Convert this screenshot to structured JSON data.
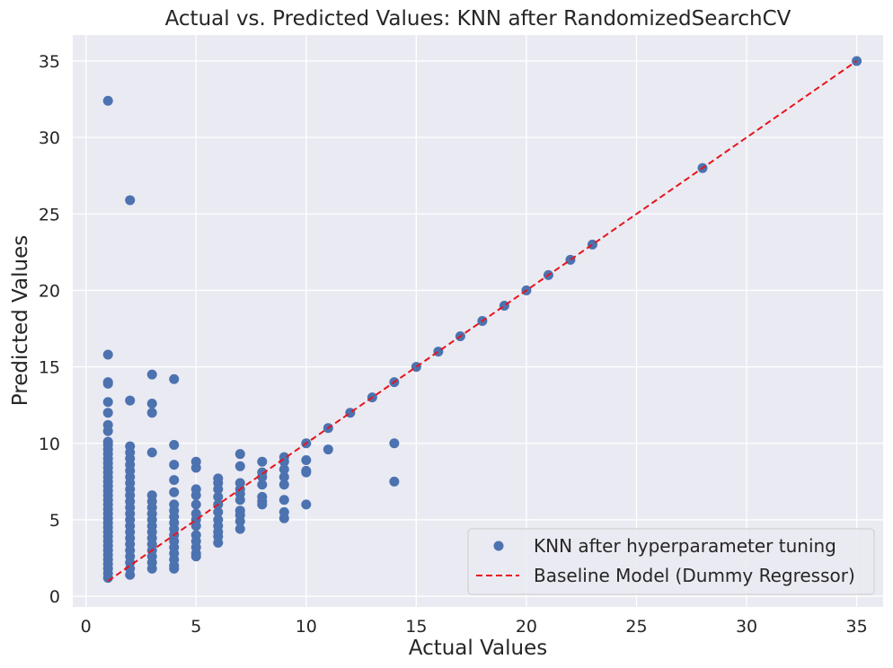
{
  "chart_data": {
    "type": "scatter",
    "title": "Actual vs. Predicted Values: KNN after RandomizedSearchCV",
    "xlabel": "Actual Values",
    "ylabel": "Predicted Values",
    "xlim": [
      -0.6,
      36.2
    ],
    "ylim": [
      -0.7,
      36.7
    ],
    "xticks": [
      0,
      5,
      10,
      15,
      20,
      25,
      30,
      35
    ],
    "yticks": [
      0,
      5,
      10,
      15,
      20,
      25,
      30,
      35
    ],
    "grid": true,
    "legend_position": "lower-right",
    "colors": {
      "background": "#eaeaf2",
      "grid": "#ffffff",
      "scatter": "#4c72b0",
      "baseline": "#e8141b"
    },
    "series": [
      {
        "name": "KNN after hyperparameter tuning",
        "kind": "scatter",
        "points": [
          [
            1,
            32.4
          ],
          [
            1,
            15.8
          ],
          [
            1,
            14.0
          ],
          [
            1,
            13.9
          ],
          [
            1,
            12.7
          ],
          [
            1,
            12.0
          ],
          [
            1,
            11.2
          ],
          [
            1,
            10.8
          ],
          [
            1,
            10.1
          ],
          [
            1,
            9.9
          ],
          [
            1,
            9.6
          ],
          [
            1,
            9.3
          ],
          [
            1,
            9.0
          ],
          [
            1,
            8.7
          ],
          [
            1,
            8.4
          ],
          [
            1,
            8.1
          ],
          [
            1,
            7.8
          ],
          [
            1,
            7.5
          ],
          [
            1,
            7.2
          ],
          [
            1,
            6.9
          ],
          [
            1,
            6.6
          ],
          [
            1,
            6.3
          ],
          [
            1,
            6.0
          ],
          [
            1,
            5.7
          ],
          [
            1,
            5.4
          ],
          [
            1,
            5.1
          ],
          [
            1,
            4.8
          ],
          [
            1,
            4.5
          ],
          [
            1,
            4.2
          ],
          [
            1,
            3.9
          ],
          [
            1,
            3.6
          ],
          [
            1,
            3.3
          ],
          [
            1,
            3.0
          ],
          [
            1,
            2.7
          ],
          [
            1,
            2.4
          ],
          [
            1,
            2.1
          ],
          [
            1,
            1.8
          ],
          [
            1,
            1.5
          ],
          [
            1,
            1.2
          ],
          [
            2,
            25.9
          ],
          [
            2,
            12.8
          ],
          [
            2,
            9.8
          ],
          [
            2,
            9.4
          ],
          [
            2,
            9.0
          ],
          [
            2,
            8.6
          ],
          [
            2,
            8.2
          ],
          [
            2,
            7.8
          ],
          [
            2,
            7.4
          ],
          [
            2,
            7.0
          ],
          [
            2,
            6.6
          ],
          [
            2,
            6.2
          ],
          [
            2,
            5.8
          ],
          [
            2,
            5.4
          ],
          [
            2,
            5.0
          ],
          [
            2,
            4.6
          ],
          [
            2,
            4.2
          ],
          [
            2,
            3.8
          ],
          [
            2,
            3.4
          ],
          [
            2,
            3.0
          ],
          [
            2,
            2.6
          ],
          [
            2,
            2.2
          ],
          [
            2,
            1.8
          ],
          [
            2,
            1.4
          ],
          [
            3,
            14.5
          ],
          [
            3,
            12.6
          ],
          [
            3,
            12.0
          ],
          [
            3,
            9.4
          ],
          [
            3,
            6.6
          ],
          [
            3,
            6.2
          ],
          [
            3,
            5.8
          ],
          [
            3,
            5.4
          ],
          [
            3,
            5.0
          ],
          [
            3,
            4.6
          ],
          [
            3,
            4.2
          ],
          [
            3,
            3.8
          ],
          [
            3,
            3.4
          ],
          [
            3,
            3.0
          ],
          [
            3,
            2.6
          ],
          [
            3,
            2.2
          ],
          [
            3,
            1.8
          ],
          [
            4,
            14.2
          ],
          [
            4,
            9.9
          ],
          [
            4,
            8.6
          ],
          [
            4,
            7.6
          ],
          [
            4,
            6.8
          ],
          [
            4,
            6.0
          ],
          [
            4,
            5.6
          ],
          [
            4,
            5.2
          ],
          [
            4,
            4.8
          ],
          [
            4,
            4.4
          ],
          [
            4,
            4.0
          ],
          [
            4,
            3.6
          ],
          [
            4,
            3.2
          ],
          [
            4,
            2.8
          ],
          [
            4,
            2.4
          ],
          [
            4,
            2.0
          ],
          [
            4,
            1.8
          ],
          [
            5,
            8.8
          ],
          [
            5,
            8.4
          ],
          [
            5,
            7.0
          ],
          [
            5,
            6.6
          ],
          [
            5,
            6.0
          ],
          [
            5,
            5.4
          ],
          [
            5,
            5.0
          ],
          [
            5,
            4.6
          ],
          [
            5,
            4.0
          ],
          [
            5,
            3.6
          ],
          [
            5,
            3.2
          ],
          [
            5,
            2.8
          ],
          [
            5,
            2.6
          ],
          [
            6,
            7.7
          ],
          [
            6,
            7.4
          ],
          [
            6,
            7.0
          ],
          [
            6,
            6.5
          ],
          [
            6,
            6.0
          ],
          [
            6,
            5.5
          ],
          [
            6,
            5.0
          ],
          [
            6,
            4.6
          ],
          [
            6,
            4.2
          ],
          [
            6,
            3.9
          ],
          [
            6,
            3.5
          ],
          [
            7,
            9.3
          ],
          [
            7,
            8.5
          ],
          [
            7,
            7.4
          ],
          [
            7,
            7.0
          ],
          [
            7,
            6.7
          ],
          [
            7,
            6.3
          ],
          [
            7,
            5.6
          ],
          [
            7,
            5.3
          ],
          [
            7,
            4.9
          ],
          [
            7,
            4.4
          ],
          [
            8,
            8.8
          ],
          [
            8,
            8.1
          ],
          [
            8,
            7.8
          ],
          [
            8,
            7.3
          ],
          [
            8,
            6.5
          ],
          [
            8,
            6.2
          ],
          [
            8,
            6.0
          ],
          [
            9,
            9.1
          ],
          [
            9,
            8.8
          ],
          [
            9,
            8.3
          ],
          [
            9,
            7.8
          ],
          [
            9,
            7.3
          ],
          [
            9,
            6.3
          ],
          [
            9,
            5.5
          ],
          [
            9,
            5.1
          ],
          [
            10,
            10.0
          ],
          [
            10,
            8.9
          ],
          [
            10,
            8.2
          ],
          [
            10,
            8.1
          ],
          [
            10,
            6.0
          ],
          [
            11,
            11.0
          ],
          [
            11,
            9.6
          ],
          [
            12,
            12.0
          ],
          [
            13,
            13.0
          ],
          [
            14,
            14.0
          ],
          [
            14,
            10.0
          ],
          [
            14,
            7.5
          ],
          [
            15,
            15.0
          ],
          [
            16,
            16.0
          ],
          [
            17,
            17.0
          ],
          [
            18,
            18.0
          ],
          [
            19,
            19.0
          ],
          [
            20,
            20.0
          ],
          [
            21,
            21.0
          ],
          [
            22,
            22.0
          ],
          [
            23,
            23.0
          ],
          [
            28,
            28.0
          ],
          [
            35,
            35.0
          ]
        ]
      },
      {
        "name": "Baseline Model (Dummy Regressor)",
        "kind": "line",
        "style": "dashed",
        "points": [
          [
            1,
            1
          ],
          [
            35,
            35
          ]
        ]
      }
    ]
  }
}
